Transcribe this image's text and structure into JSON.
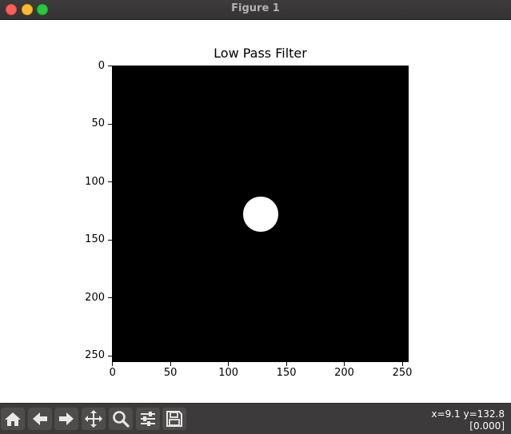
{
  "window": {
    "title": "Figure 1"
  },
  "chart_data": {
    "type": "image",
    "title": "Low Pass Filter",
    "xlabel": "",
    "ylabel": "",
    "xlim": [
      0,
      256
    ],
    "ylim": [
      256,
      0
    ],
    "xticks": [
      "0",
      "50",
      "100",
      "150",
      "200",
      "250"
    ],
    "yticks": [
      "0",
      "50",
      "100",
      "150",
      "200",
      "250"
    ],
    "xtick_values": [
      0,
      50,
      100,
      150,
      200,
      250
    ],
    "ytick_values": [
      0,
      50,
      100,
      150,
      200,
      250
    ],
    "image": {
      "shape": [
        256,
        256
      ],
      "background": "#000000",
      "foreground": "#ffffff",
      "mask": "disk",
      "center": [
        128,
        128
      ],
      "radius": 15
    },
    "grid": false
  },
  "toolbar": {
    "buttons": [
      {
        "name": "home-button",
        "icon": "home-icon"
      },
      {
        "name": "back-button",
        "icon": "arrow-left-icon"
      },
      {
        "name": "forward-button",
        "icon": "arrow-right-icon"
      },
      {
        "name": "pan-button",
        "icon": "move-icon"
      },
      {
        "name": "zoom-button",
        "icon": "magnifier-icon"
      },
      {
        "name": "configure-subplots-button",
        "icon": "sliders-icon"
      },
      {
        "name": "save-button",
        "icon": "floppy-disk-icon"
      }
    ],
    "status_coords": "x=9.1 y=132.8",
    "status_value": "[0.000]"
  },
  "colors": {
    "titlebar": "#3d3b3c",
    "toolbar": "#3c3a3a",
    "close": "#fe5f57",
    "minimize": "#febc2e",
    "maximize": "#28c840"
  }
}
